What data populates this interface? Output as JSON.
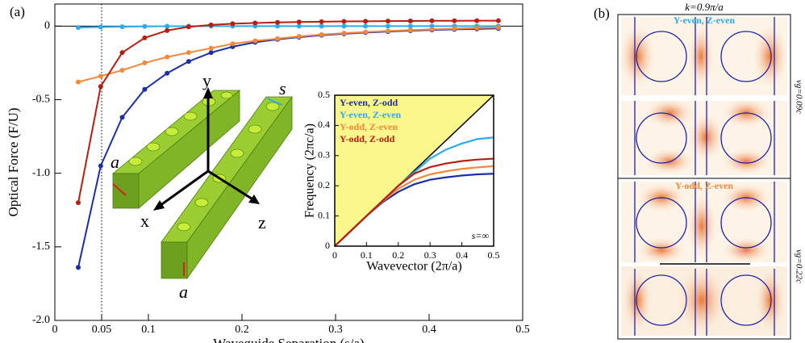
{
  "chart_data": [
    {
      "type": "line",
      "panel_label": "(a)",
      "xlabel": "Waveguide Separation (s/a)",
      "ylabel": "Optical Force (F/U)",
      "x": [
        0.025,
        0.049,
        0.072,
        0.096,
        0.12,
        0.143,
        0.167,
        0.19,
        0.214,
        0.238,
        0.261,
        0.285,
        0.309,
        0.332,
        0.356,
        0.38,
        0.403,
        0.427,
        0.451,
        0.474
      ],
      "series": [
        {
          "color": "#1a2fa8",
          "values": [
            -1.64,
            -0.95,
            -0.62,
            -0.43,
            -0.32,
            -0.24,
            -0.18,
            -0.14,
            -0.11,
            -0.09,
            -0.075,
            -0.062,
            -0.052,
            -0.044,
            -0.037,
            -0.031,
            -0.026,
            -0.022,
            -0.019,
            -0.016
          ]
        },
        {
          "color": "#2eaaee",
          "values": [
            -0.01,
            -0.006,
            -0.004,
            -0.002,
            -0.001,
            0,
            0,
            0,
            0,
            0,
            0,
            0,
            0,
            0,
            0,
            0,
            0,
            0,
            0,
            0
          ]
        },
        {
          "color": "#f5883a",
          "values": [
            -0.38,
            -0.34,
            -0.3,
            -0.25,
            -0.21,
            -0.18,
            -0.15,
            -0.12,
            -0.1,
            -0.085,
            -0.07,
            -0.058,
            -0.048,
            -0.04,
            -0.033,
            -0.027,
            -0.022,
            -0.017,
            -0.013,
            -0.01
          ]
        },
        {
          "color": "#b81e0e",
          "values": [
            -1.2,
            -0.41,
            -0.18,
            -0.08,
            -0.03,
            -0.005,
            0.008,
            0.016,
            0.021,
            0.025,
            0.028,
            0.03,
            0.032,
            0.033,
            0.034,
            0.035,
            0.036,
            0.036,
            0.037,
            0.037
          ]
        }
      ],
      "xlim": [
        0,
        0.5
      ],
      "ylim": [
        -2,
        0.15
      ],
      "xticks": [
        0,
        0.05,
        0.1,
        0.2,
        0.3,
        0.4,
        0.5
      ],
      "yticks": [
        {
          "value": -2,
          "label": "-2.0"
        },
        {
          "value": -1.5,
          "label": "-1.5"
        },
        {
          "value": -1,
          "label": "-1.0"
        },
        {
          "value": -0.5,
          "label": "-0.5"
        },
        0
      ],
      "markers": true,
      "zero_line": true,
      "vline_x": 0.05,
      "illustration_labels": {
        "y": "y",
        "x": "x",
        "z": "z",
        "s": "s",
        "a_left": "a",
        "a_bottom": "a"
      }
    },
    {
      "type": "line",
      "xlabel": "Wavevector (2π/a)",
      "ylabel": "Frequency (2πc/a)",
      "annotation": "s=∞",
      "x": [
        0,
        0.05,
        0.1,
        0.15,
        0.2,
        0.25,
        0.3,
        0.35,
        0.4,
        0.45,
        0.5
      ],
      "series": [
        {
          "name": "Y-even, Z-odd",
          "color": "#1a2fa8",
          "values": [
            0,
            0.05,
            0.1,
            0.145,
            0.18,
            0.205,
            0.22,
            0.228,
            0.234,
            0.238,
            0.24
          ]
        },
        {
          "name": "Y-even, Z-even",
          "color": "#2eaaee",
          "values": [
            0,
            0.05,
            0.1,
            0.15,
            0.2,
            0.245,
            0.29,
            0.32,
            0.34,
            0.355,
            0.36
          ]
        },
        {
          "name": "Y-odd,  Z-even",
          "color": "#f5883a",
          "values": [
            0,
            0.05,
            0.1,
            0.148,
            0.19,
            0.22,
            0.238,
            0.248,
            0.256,
            0.261,
            0.265
          ]
        },
        {
          "name": "Y-odd,  Z-odd",
          "color": "#b81e0e",
          "values": [
            0,
            0.05,
            0.1,
            0.15,
            0.2,
            0.24,
            0.262,
            0.274,
            0.282,
            0.287,
            0.29
          ]
        }
      ],
      "xlim": [
        0,
        0.5
      ],
      "ylim": [
        0,
        0.5
      ],
      "xticks": [
        0,
        0.1,
        0.2,
        0.3,
        0.4,
        0.5
      ],
      "yticks": [
        0,
        0.1,
        0.2,
        0.3,
        0.4,
        0.5
      ],
      "light_line": true,
      "light_cone_color": "#fbf78c"
    }
  ],
  "panel_b": {
    "label": "(b)",
    "title": "k=0.9π/a",
    "modes": [
      {
        "label": "Y-even, Z-even",
        "color": "#2eaaee",
        "group_velocity": "vg=0.09c"
      },
      {
        "label": "Y-odd,  Z-even",
        "color": "#f5883a",
        "group_velocity": "vg=0.22c"
      }
    ]
  }
}
